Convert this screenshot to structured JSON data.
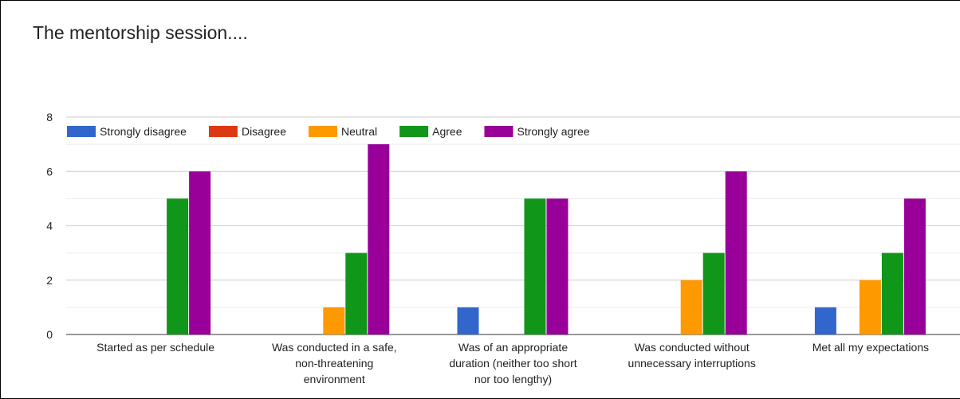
{
  "chart_data": {
    "type": "bar",
    "title": "The mentorship session....",
    "xlabel": "",
    "ylabel": "",
    "ylim": [
      0,
      8
    ],
    "y_ticks": [
      "0",
      "2",
      "4",
      "6",
      "8"
    ],
    "grid": true,
    "legend_position": "top-left",
    "categories": [
      [
        "Started as per schedule"
      ],
      [
        "Was conducted in a safe,",
        "non-threatening",
        "environment"
      ],
      [
        "Was of an appropriate",
        "duration (neither too short",
        "nor too lengthy)"
      ],
      [
        "Was conducted without",
        "unnecessary interruptions"
      ],
      [
        "Met all my expectations"
      ]
    ],
    "series": [
      {
        "name": "Strongly disagree",
        "color": "#3366cc",
        "values": [
          0,
          0,
          1,
          0,
          1
        ]
      },
      {
        "name": "Disagree",
        "color": "#dc3912",
        "values": [
          0,
          0,
          0,
          0,
          0
        ]
      },
      {
        "name": "Neutral",
        "color": "#ff9900",
        "values": [
          0,
          1,
          0,
          2,
          2
        ]
      },
      {
        "name": "Agree",
        "color": "#109618",
        "values": [
          5,
          3,
          5,
          3,
          3
        ]
      },
      {
        "name": "Strongly agree",
        "color": "#990099",
        "values": [
          6,
          7,
          5,
          6,
          5
        ]
      }
    ]
  }
}
